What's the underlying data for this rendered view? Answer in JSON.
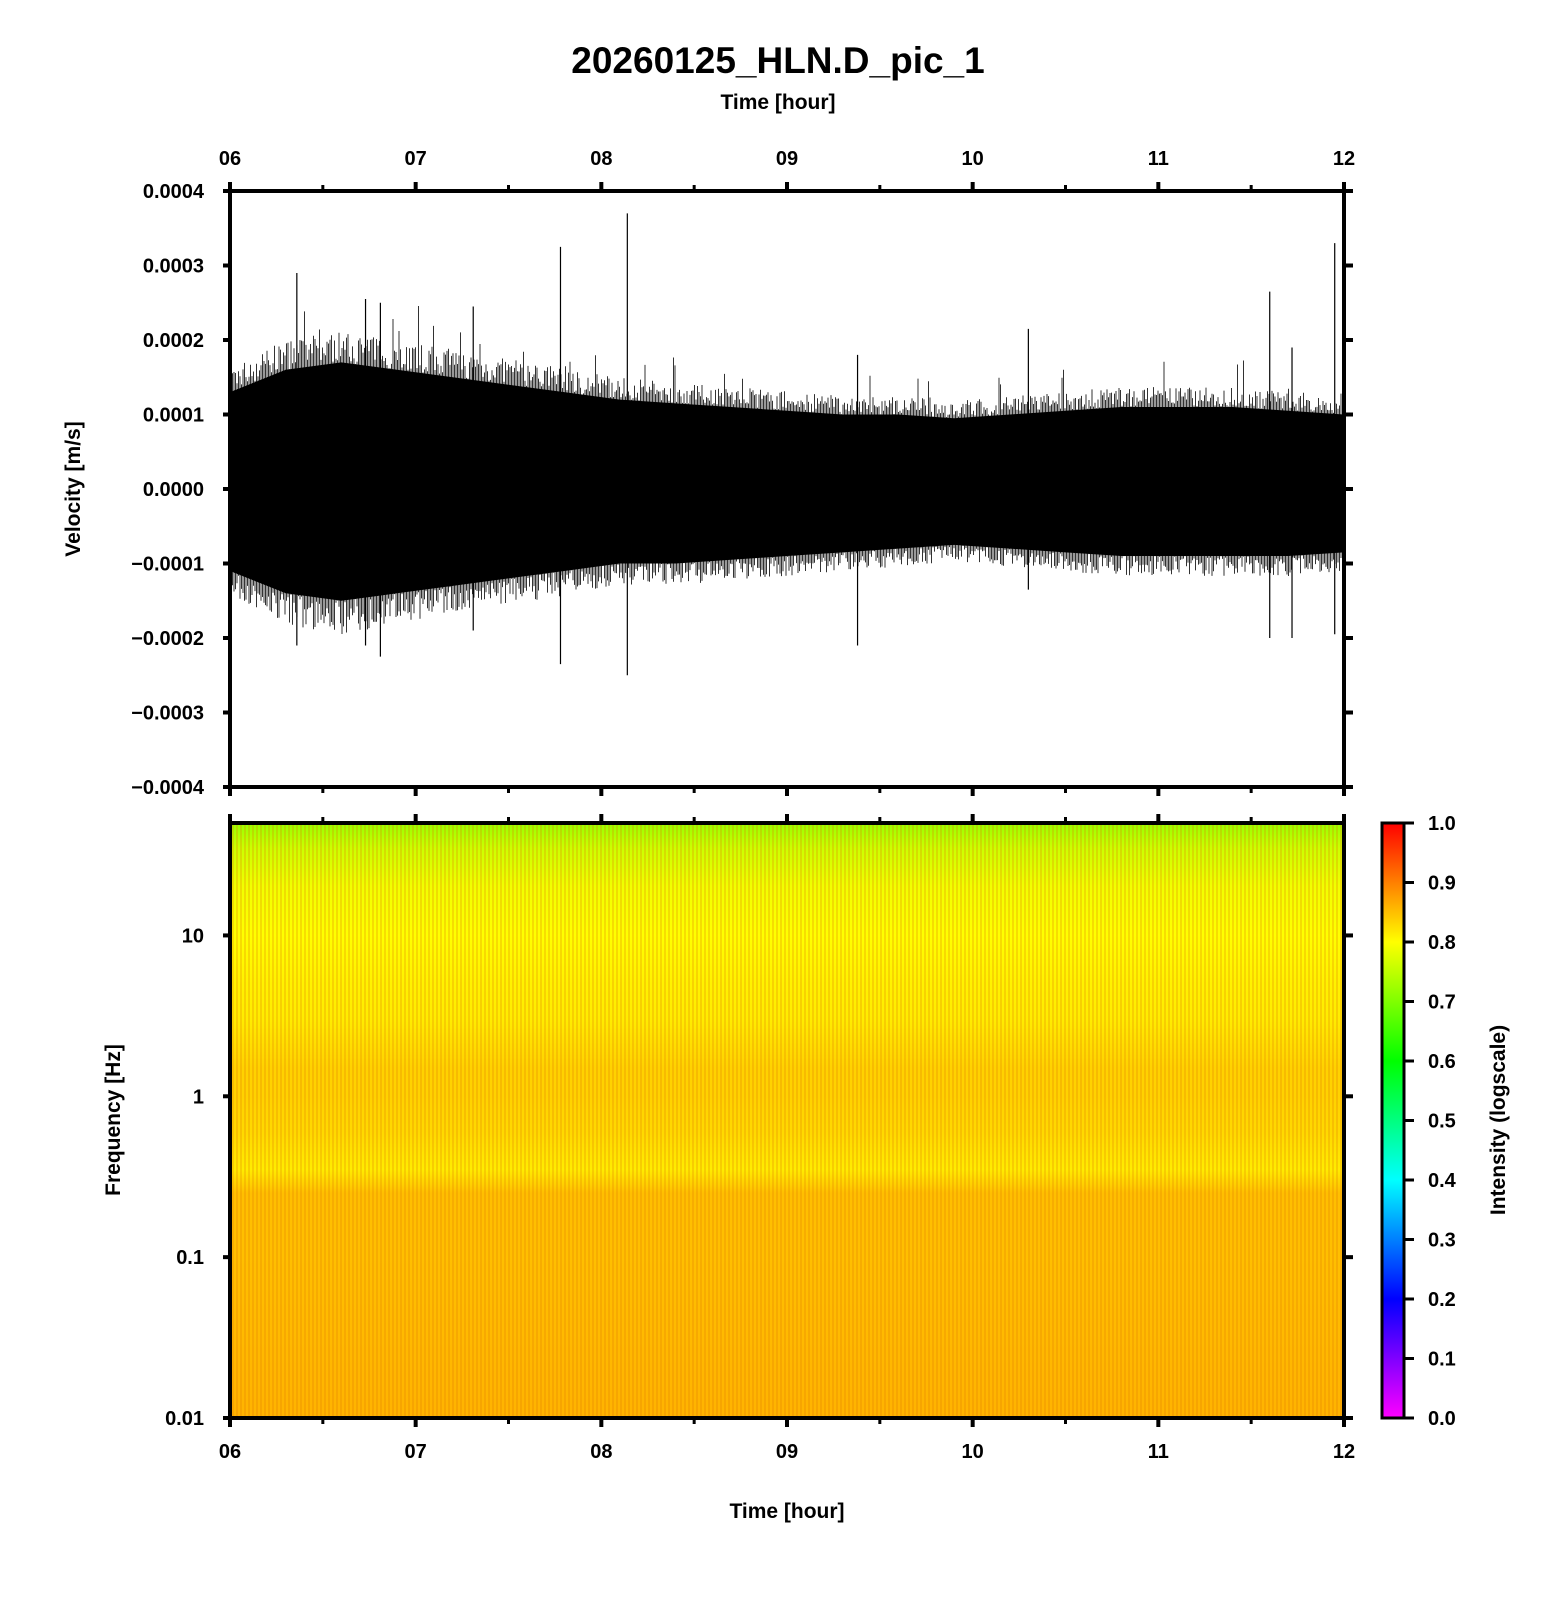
{
  "chart_data": [
    {
      "type": "line",
      "title": "20260125_HLN.D_pic_1",
      "xlabel_top": "Time [hour]",
      "ylabel": "Velocity [m/s]",
      "x_ticks": [
        "06",
        "07",
        "08",
        "09",
        "10",
        "11",
        "12"
      ],
      "y_ticks": [
        "0.0004",
        "0.0003",
        "0.0002",
        "0.0001",
        "0.0000",
        "−0.0001",
        "−0.0002",
        "−0.0003",
        "−0.0004"
      ],
      "xlim": [
        6,
        12
      ],
      "ylim": [
        -0.0004,
        0.0004
      ],
      "envelope": {
        "x": [
          6.0,
          6.3,
          6.6,
          6.9,
          7.2,
          7.5,
          7.8,
          8.1,
          8.4,
          8.7,
          9.0,
          9.3,
          9.6,
          9.9,
          10.2,
          10.5,
          10.8,
          11.1,
          11.4,
          11.7,
          12.0
        ],
        "upper": [
          0.00013,
          0.00016,
          0.00017,
          0.00016,
          0.00015,
          0.00014,
          0.00013,
          0.00012,
          0.000115,
          0.00011,
          0.000105,
          0.0001,
          0.0001,
          9.5e-05,
          0.0001,
          0.000105,
          0.00011,
          0.00011,
          0.00011,
          0.000105,
          0.0001
        ],
        "lower": [
          -0.00011,
          -0.00014,
          -0.00015,
          -0.00014,
          -0.00013,
          -0.00012,
          -0.00011,
          -0.0001,
          -0.0001,
          -9.5e-05,
          -9e-05,
          -8.5e-05,
          -8e-05,
          -7.5e-05,
          -8e-05,
          -8.5e-05,
          -9e-05,
          -9e-05,
          -9e-05,
          -9e-05,
          -8.5e-05
        ]
      },
      "spikes": [
        {
          "x": 6.36,
          "max": 0.00029,
          "min": -0.00021
        },
        {
          "x": 6.73,
          "max": 0.000255,
          "min": -0.00021
        },
        {
          "x": 6.81,
          "max": 0.00025,
          "min": -0.000225
        },
        {
          "x": 7.31,
          "max": 0.000245,
          "min": -0.00019
        },
        {
          "x": 7.78,
          "max": 0.000325,
          "min": -0.000235
        },
        {
          "x": 8.14,
          "max": 0.00037,
          "min": -0.00025
        },
        {
          "x": 9.38,
          "max": 0.00018,
          "min": -0.00021
        },
        {
          "x": 10.3,
          "max": 0.000215,
          "min": -0.000135
        },
        {
          "x": 11.6,
          "max": 0.000265,
          "min": -0.0002
        },
        {
          "x": 11.72,
          "max": 0.00019,
          "min": -0.0002
        },
        {
          "x": 11.95,
          "max": 0.00033,
          "min": -0.000195
        }
      ],
      "color": "#000000"
    },
    {
      "type": "heatmap",
      "xlabel": "Time [hour]",
      "ylabel": "Frequency [Hz]",
      "x_ticks": [
        "06",
        "07",
        "08",
        "09",
        "10",
        "11",
        "12"
      ],
      "y_ticks": [
        "10",
        "1",
        "0.1",
        "0.01"
      ],
      "xlim": [
        6,
        12
      ],
      "ylim": [
        0.01,
        50
      ],
      "yscale": "log",
      "intensity_profile": {
        "freq_hz": [
          0.01,
          0.03,
          0.1,
          0.25,
          0.35,
          0.6,
          1.0,
          1.5,
          3.0,
          5.0,
          10.0,
          20.0,
          35.0,
          50.0
        ],
        "intensity": [
          0.86,
          0.855,
          0.85,
          0.85,
          0.815,
          0.83,
          0.835,
          0.835,
          0.815,
          0.81,
          0.8,
          0.79,
          0.76,
          0.72
        ]
      },
      "colorbar": {
        "label": "Intensity (logscale)",
        "range": [
          0.0,
          1.0
        ],
        "ticks": [
          "0.0",
          "0.1",
          "0.2",
          "0.3",
          "0.4",
          "0.5",
          "0.6",
          "0.7",
          "0.8",
          "0.9",
          "1.0"
        ],
        "colormap": [
          {
            "v": 0.0,
            "color": "#ff00ff"
          },
          {
            "v": 0.2,
            "color": "#0000ff"
          },
          {
            "v": 0.4,
            "color": "#00ffff"
          },
          {
            "v": 0.6,
            "color": "#00ff00"
          },
          {
            "v": 0.8,
            "color": "#ffff00"
          },
          {
            "v": 1.0,
            "color": "#ff0000"
          }
        ]
      }
    }
  ]
}
